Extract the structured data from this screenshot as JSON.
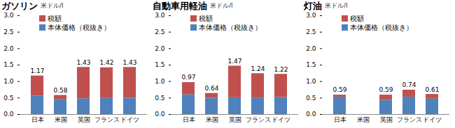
{
  "chart_data": [
    {
      "type": "bar",
      "title": "ガソリン",
      "y_label": "米ドル/l",
      "categories": [
        "日本",
        "米国",
        "英国",
        "フランス",
        "ドイツ"
      ],
      "series": [
        {
          "name": "本体価格（税抜き）",
          "color": "#4f81bd",
          "values": [
            0.56,
            0.46,
            0.48,
            0.49,
            0.5
          ]
        },
        {
          "name": "税額",
          "color": "#c0504d",
          "values": [
            0.61,
            0.12,
            0.95,
            0.93,
            0.93
          ]
        }
      ],
      "totals": [
        1.17,
        0.58,
        1.43,
        1.42,
        1.43
      ],
      "ylim": [
        0,
        3
      ],
      "yticks": [
        {
          "value": 0,
          "label": "0.0"
        },
        0.5,
        {
          "value": 1,
          "label": "1.0"
        },
        1.5,
        {
          "value": 2,
          "label": "2.0"
        },
        2.5,
        {
          "value": 3,
          "label": "3.0"
        }
      ],
      "stacked": true,
      "grid": false,
      "legend": "upper left"
    },
    {
      "type": "bar",
      "title": "自動車用軽油",
      "y_label": "米ドル/l",
      "categories": [
        "日本",
        "米国",
        "英国",
        "フランス",
        "ドイツ"
      ],
      "series": [
        {
          "name": "本体価格（税抜き）",
          "color": "#4f81bd",
          "values": [
            0.6,
            0.5,
            0.51,
            0.49,
            0.52
          ]
        },
        {
          "name": "税額",
          "color": "#c0504d",
          "values": [
            0.37,
            0.14,
            0.96,
            0.75,
            0.7
          ]
        }
      ],
      "totals": [
        0.97,
        0.64,
        1.47,
        1.24,
        1.22
      ],
      "ylim": [
        0,
        3
      ],
      "yticks": [
        {
          "value": 0,
          "label": "0.0"
        },
        0.5,
        {
          "value": 1,
          "label": "1.0"
        },
        1.5,
        {
          "value": 2,
          "label": "2.0"
        },
        2.5,
        {
          "value": 3,
          "label": "3.0"
        }
      ],
      "stacked": true,
      "grid": false,
      "legend": "upper left"
    },
    {
      "type": "bar",
      "title": "灯油",
      "y_label": "米ドル/l",
      "categories": [
        "日本",
        "米国",
        "英国",
        "フランス",
        "ドイツ"
      ],
      "series": [
        {
          "name": "本体価格（税抜き）",
          "color": "#4f81bd",
          "values": [
            0.53,
            null,
            0.43,
            0.53,
            0.47
          ]
        },
        {
          "name": "税額",
          "color": "#c0504d",
          "values": [
            0.06,
            null,
            0.16,
            0.21,
            0.14
          ]
        }
      ],
      "totals": [
        0.59,
        null,
        0.59,
        0.74,
        0.61
      ],
      "ylim": [
        0,
        3
      ],
      "yticks": [
        {
          "value": 0,
          "label": "0.0"
        },
        0.5,
        {
          "value": 1,
          "label": "1.0"
        },
        1.5,
        {
          "value": 2,
          "label": "2.0"
        },
        2.5,
        {
          "value": 3,
          "label": "3.0"
        }
      ],
      "stacked": true,
      "grid": false,
      "legend": "upper left"
    }
  ]
}
